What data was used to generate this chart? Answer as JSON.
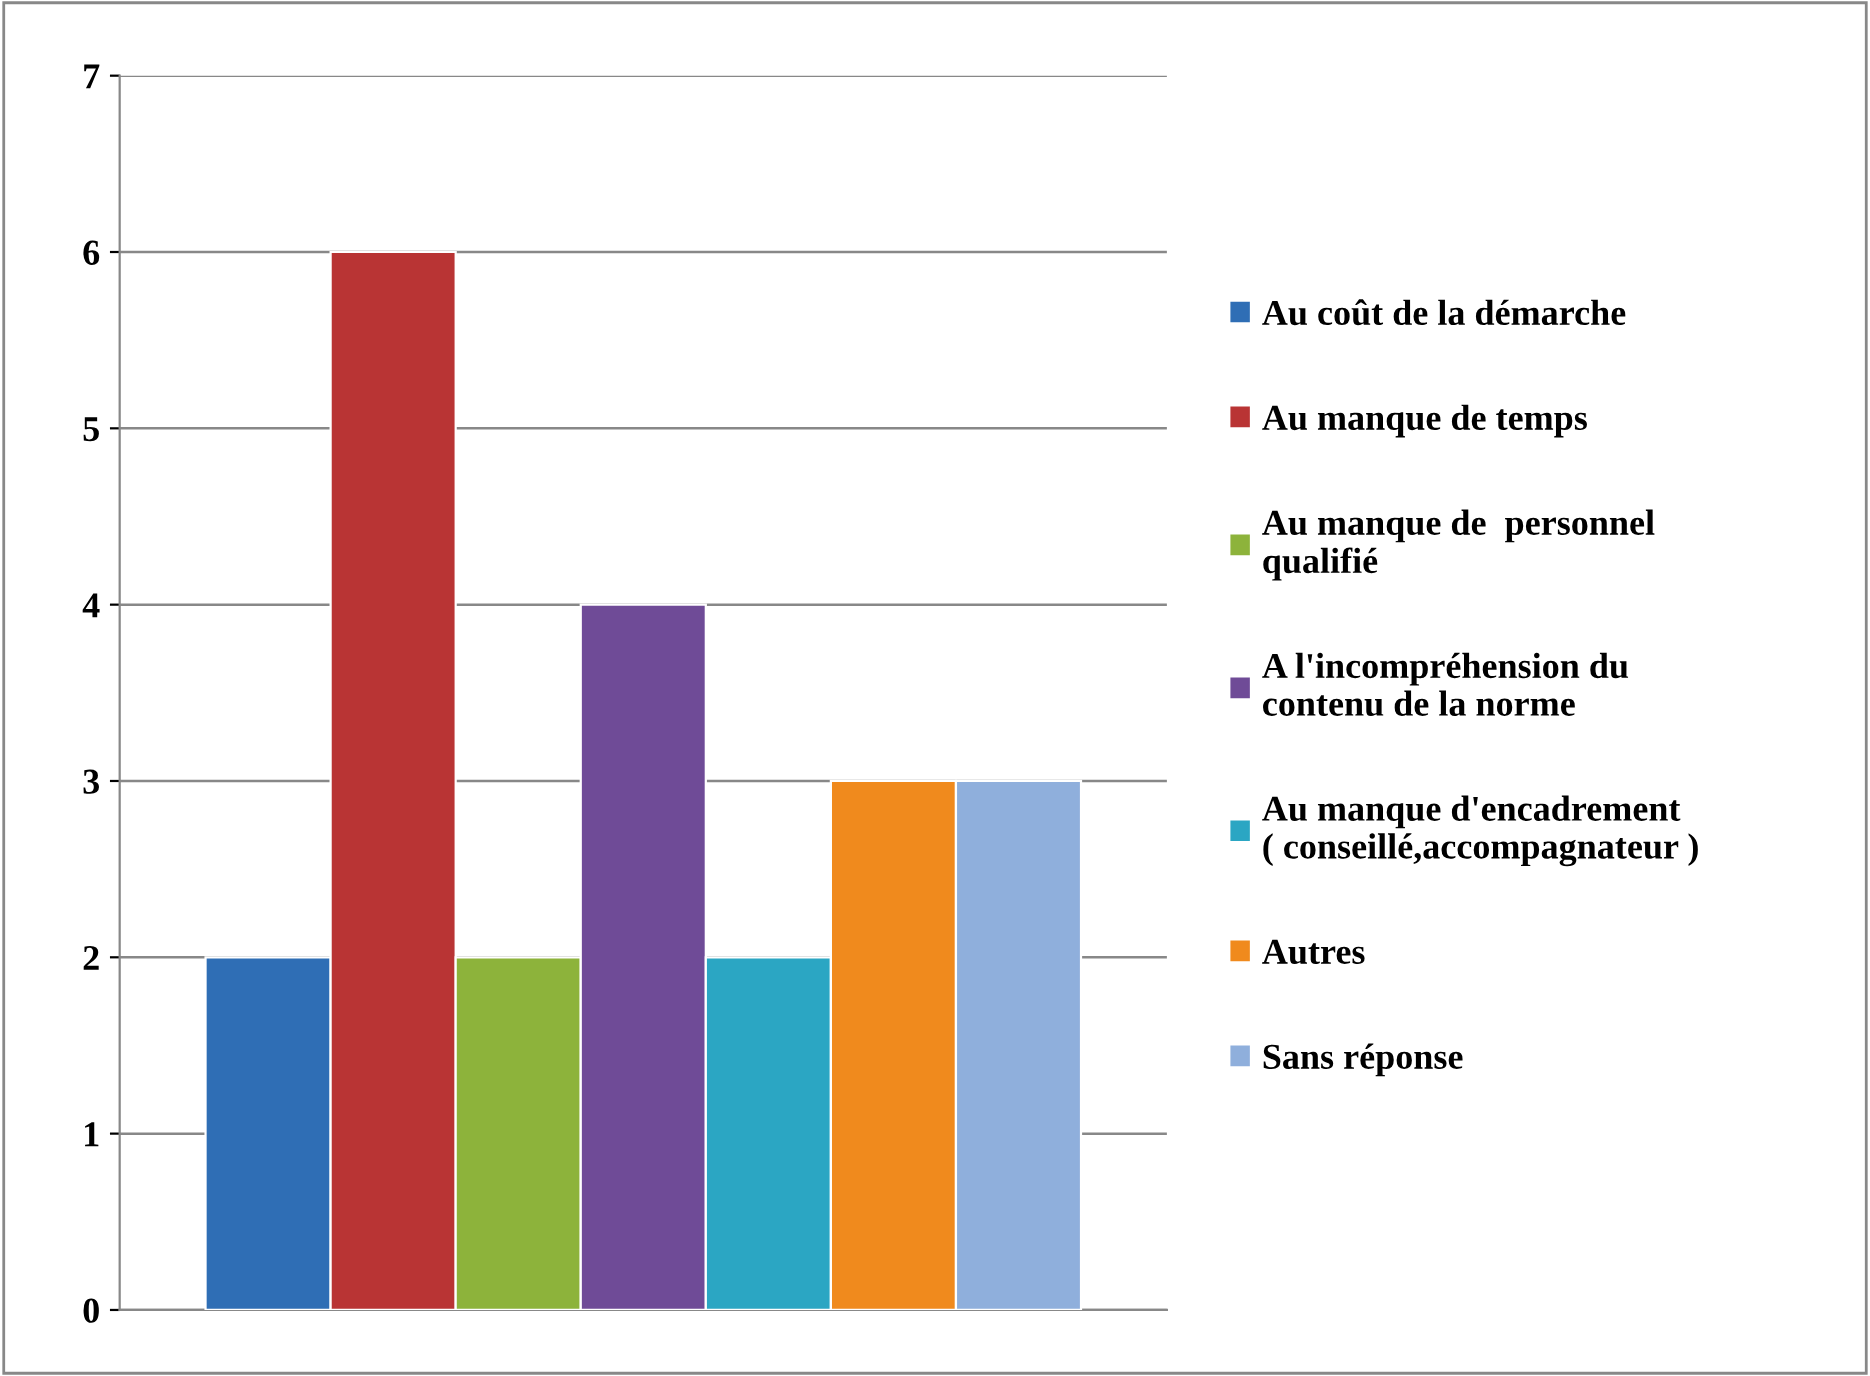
{
  "chart_data": {
    "type": "bar",
    "categories": [
      null
    ],
    "series": [
      {
        "name": "Au coût de la démarche",
        "color": "#2f6eb5",
        "values": [
          2
        ]
      },
      {
        "name": "Au manque de temps",
        "color": "#b93434",
        "values": [
          6
        ]
      },
      {
        "name": "Au manque de  personnel\nqualifié",
        "color": "#8db33b",
        "values": [
          2
        ]
      },
      {
        "name": "A l'incompréhension du\ncontenu de la norme",
        "color": "#6f4b97",
        "values": [
          4
        ]
      },
      {
        "name": "Au manque d'encadrement\n( conseillé,accompagnateur )",
        "color": "#2ba6c3",
        "values": [
          2
        ]
      },
      {
        "name": "Autres",
        "color": "#f08a1d",
        "values": [
          3
        ]
      },
      {
        "name": "Sans réponse",
        "color": "#8fafdc",
        "values": [
          3
        ]
      }
    ],
    "ylim": [
      0,
      7
    ],
    "yticks": [
      0,
      1,
      2,
      3,
      4,
      5,
      6,
      7
    ],
    "grid": "y",
    "legend": "right"
  }
}
